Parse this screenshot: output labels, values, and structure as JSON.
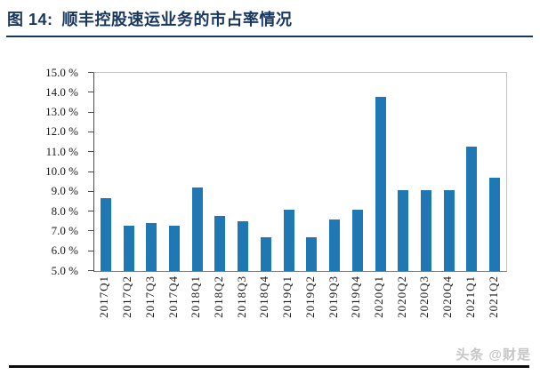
{
  "title": {
    "prefix": "图 14:",
    "text": "顺丰控股速运业务的市占率情况"
  },
  "watermark": "头条 @财是",
  "colors": {
    "bar": "#1F77B4",
    "title": "#17375E",
    "title_rule": "#17375E",
    "bottom_rule": "#0A0A0A",
    "watermark": "#C6C6C6",
    "axis_left": "#4D4D4D",
    "axis_bottom": "#808080",
    "frame": "#C3C3C3",
    "tick_label": "#1A1A1A"
  },
  "chart_data": {
    "type": "bar",
    "title": "顺丰控股速运业务的市占率情况",
    "xlabel": "",
    "ylabel": "",
    "categories": [
      "2017Q1",
      "2017Q2",
      "2017Q3",
      "2017Q4",
      "2018Q1",
      "2018Q2",
      "2018Q3",
      "2018Q4",
      "2019Q1",
      "2019Q2",
      "2019Q3",
      "2019Q4",
      "2020Q1",
      "2020Q2",
      "2020Q3",
      "2020Q4",
      "2021Q1",
      "2021Q2"
    ],
    "values": [
      8.7,
      7.3,
      7.4,
      7.3,
      9.2,
      7.8,
      7.5,
      6.7,
      8.1,
      6.7,
      7.6,
      8.1,
      13.8,
      9.1,
      9.1,
      9.1,
      11.3,
      9.7
    ],
    "unit": "%",
    "ylim": [
      5.0,
      15.0
    ],
    "ytick_step": 1.0,
    "ytick_labels": [
      "15.0 %",
      "14.0 %",
      "13.0 %",
      "12.0 %",
      "11.0 %",
      "10.0 %",
      "9.0 %",
      "8.0 %",
      "7.0 %",
      "6.0 %",
      "5.0 %"
    ],
    "grid": false,
    "legend": false
  }
}
